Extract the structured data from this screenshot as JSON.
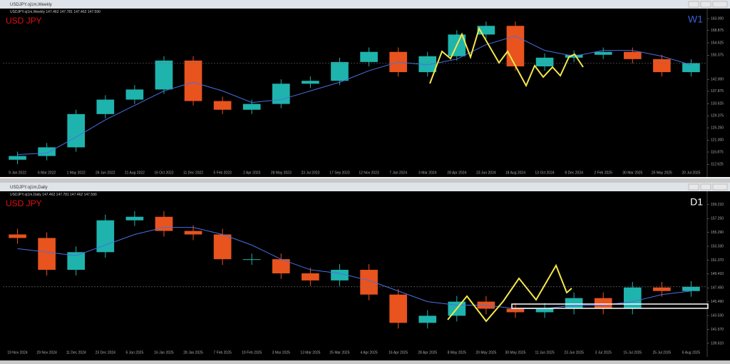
{
  "windows": [
    {
      "title": "USDJPY.oj1m,Weekly"
    },
    {
      "title": "USDJPY.oj1m,Daily"
    }
  ],
  "chart_data": [
    {
      "type": "candlestick",
      "title": "USD JPY",
      "subtitle": "USDJPY.oj1m,Weekly 147.462 147.781 147.462 147.590",
      "period_label": "W1",
      "period_color": "#3a5fd0",
      "categories": [
        "9 Jan 2022",
        "6 Mar 2022",
        "1 May 2022",
        "26 Jun 2022",
        "21 Aug 2022",
        "16 Oct 2022",
        "11 Dec 2022",
        "5 Feb 2023",
        "2 Apr 2023",
        "28 May 2023",
        "23 Jul 2023",
        "17 Sep 2023",
        "12 Nov 2023",
        "7 Jan 2024",
        "3 Mar 2024",
        "28 Apr 2024",
        "23 Jun 2024",
        "18 Aug 2024",
        "13 Oct 2024",
        "8 Dec 2024",
        "2 Feb 2025",
        "30 Mar 2025",
        "25 May 2025",
        "20 Jul 2025"
      ],
      "open": [
        114.2,
        115.5,
        118.5,
        130.0,
        135.0,
        138.5,
        148.5,
        134.5,
        131.5,
        133.5,
        140.5,
        141.5,
        148.0,
        151.5,
        144.5,
        150.0,
        157.5,
        160.5,
        146.5,
        149.5,
        150.5,
        151.5,
        149.0,
        144.5
      ],
      "high": [
        117.0,
        120.0,
        131.5,
        136.5,
        140.0,
        150.0,
        150.0,
        136.0,
        135.0,
        142.0,
        143.0,
        149.5,
        153.0,
        153.0,
        151.5,
        159.0,
        162.0,
        162.0,
        151.0,
        152.0,
        153.0,
        153.0,
        150.5,
        149.0
      ],
      "low": [
        112.7,
        114.0,
        117.0,
        128.5,
        133.5,
        137.0,
        133.0,
        130.0,
        130.0,
        132.0,
        139.0,
        140.0,
        146.5,
        143.0,
        143.0,
        148.5,
        156.0,
        145.0,
        145.0,
        148.0,
        149.0,
        147.5,
        143.0,
        143.0
      ],
      "close": [
        115.5,
        118.5,
        130.0,
        135.0,
        138.5,
        148.5,
        134.5,
        131.5,
        133.5,
        140.5,
        141.5,
        148.0,
        151.5,
        144.5,
        150.0,
        157.5,
        160.5,
        146.5,
        149.5,
        150.5,
        151.5,
        149.0,
        144.5,
        147.6
      ],
      "moving_average": [
        116,
        116.5,
        122,
        128,
        133,
        138,
        141,
        138,
        134,
        135,
        138,
        141,
        145,
        148,
        147,
        149,
        154,
        157,
        152,
        150,
        152,
        152,
        150,
        147
      ],
      "up_color": "#1fb3ad",
      "down_color": "#e8531e",
      "ma_color": "#4a6fe3",
      "ylim": [
        111.2,
        165.0
      ],
      "yticks": [
        {
          "value": 163.0,
          "label": "163.000"
        },
        {
          "value": 158.875,
          "label": "158.875"
        },
        {
          "value": 154.625,
          "label": "154.625"
        },
        {
          "value": 150.375,
          "label": "150.375"
        },
        {
          "value": 142.0,
          "label": "142.000"
        },
        {
          "value": 137.875,
          "label": "137.875"
        },
        {
          "value": 133.625,
          "label": "133.625"
        },
        {
          "value": 129.375,
          "label": "129.375"
        },
        {
          "value": 125.25,
          "label": "125.250"
        },
        {
          "value": 121.0,
          "label": "121.000"
        },
        {
          "value": 116.875,
          "label": "116.875"
        },
        {
          "value": 112.625,
          "label": "112.625"
        }
      ]
    },
    {
      "type": "candlestick",
      "title": "USD JPY",
      "subtitle": "USDJPY.oj1m,Daily 147.462 147.781 147.462 147.590",
      "period_label": "D1",
      "period_color": "#ffffff",
      "categories": [
        "19 Nov 2024",
        "29 Nov 2024",
        "11 Dec 2024",
        "23 Dec 2024",
        "6 Jan 2025",
        "16 Jan 2025",
        "28 Jan 2025",
        "7 Feb 2025",
        "19 Feb 2025",
        "3 Mar 2025",
        "13 Mar 2025",
        "25 Mar 2025",
        "4 Apr 2025",
        "16 Apr 2025",
        "28 Apr 2025",
        "8 May 2025",
        "20 May 2025",
        "30 May 2025",
        "11 Jun 2025",
        "23 Jun 2025",
        "3 Jul 2025",
        "15 Jul 2025",
        "25 Jul 2025",
        "6 Aug 2025"
      ],
      "open": [
        155.0,
        154.5,
        150.0,
        152.5,
        157.0,
        157.5,
        155.5,
        155.0,
        151.5,
        151.5,
        149.5,
        148.5,
        150.0,
        146.5,
        142.5,
        143.5,
        145.5,
        144.5,
        144.0,
        144.5,
        146.0,
        144.5,
        147.5,
        147.0
      ],
      "high": [
        155.8,
        155.3,
        153.3,
        157.8,
        158.3,
        158.3,
        156.3,
        155.8,
        152.3,
        152.3,
        150.3,
        150.8,
        150.8,
        147.3,
        144.3,
        146.3,
        146.3,
        145.3,
        145.3,
        146.8,
        146.8,
        148.3,
        148.3,
        148.4
      ],
      "low": [
        153.7,
        149.2,
        149.2,
        151.7,
        156.2,
        154.7,
        154.2,
        150.7,
        150.7,
        148.7,
        147.7,
        147.7,
        145.7,
        141.7,
        141.7,
        142.7,
        143.7,
        143.2,
        143.2,
        143.7,
        143.7,
        143.7,
        146.2,
        146.2
      ],
      "close": [
        154.5,
        150.0,
        152.5,
        157.0,
        157.5,
        155.5,
        155.0,
        151.5,
        151.5,
        149.5,
        148.5,
        150.0,
        146.5,
        142.5,
        143.5,
        145.5,
        144.5,
        144.0,
        144.5,
        146.0,
        144.5,
        147.5,
        147.0,
        147.6
      ],
      "moving_average": [
        153,
        152.5,
        152,
        153.5,
        155,
        156,
        156,
        155,
        153.5,
        151.5,
        150,
        149.5,
        148.5,
        147,
        145.5,
        145,
        145,
        144.5,
        144.5,
        145,
        145,
        145.5,
        146.5,
        147
      ],
      "up_color": "#1fb3ad",
      "down_color": "#e8531e",
      "ma_color": "#4a6fe3",
      "ylim": [
        138.9,
        160.3
      ],
      "yticks": [
        {
          "value": 159.21,
          "label": "159.210"
        },
        {
          "value": 157.25,
          "label": "157.250"
        },
        {
          "value": 155.29,
          "label": "155.290"
        },
        {
          "value": 153.33,
          "label": "153.330"
        },
        {
          "value": 151.37,
          "label": "151.370"
        },
        {
          "value": 149.41,
          "label": "149.410"
        },
        {
          "value": 147.45,
          "label": "147.450"
        },
        {
          "value": 145.49,
          "label": "145.490"
        },
        {
          "value": 143.53,
          "label": "143.530"
        },
        {
          "value": 141.57,
          "label": "141.570"
        },
        {
          "value": 139.61,
          "label": "139.610"
        }
      ]
    }
  ]
}
